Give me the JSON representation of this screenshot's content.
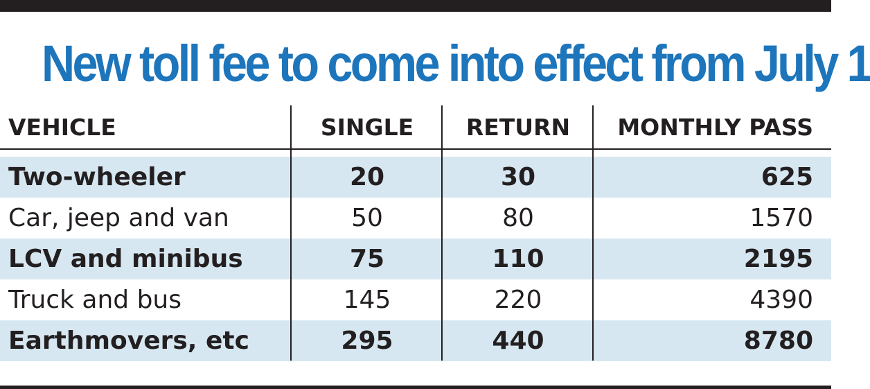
{
  "colors": {
    "title": "#1d75bb",
    "text": "#231f20",
    "row_shade": "#d6e7f1",
    "rules": "#231f20"
  },
  "chart_data": {
    "type": "table",
    "title": "New toll fee to come into effect from July 1",
    "columns": [
      "VEHICLE",
      "SINGLE",
      "RETURN",
      "MONTHLY PASS"
    ],
    "rows": [
      {
        "vehicle": "Two-wheeler",
        "single": "20",
        "return": "30",
        "monthly": "625"
      },
      {
        "vehicle": "Car, jeep and van",
        "single": "50",
        "return": "80",
        "monthly": "1570"
      },
      {
        "vehicle": "LCV and minibus",
        "single": "75",
        "return": "110",
        "monthly": "2195"
      },
      {
        "vehicle": "Truck and bus",
        "single": "145",
        "return": "220",
        "monthly": "4390"
      },
      {
        "vehicle": "Earthmovers, etc",
        "single": "295",
        "return": "440",
        "monthly": "8780"
      }
    ]
  }
}
